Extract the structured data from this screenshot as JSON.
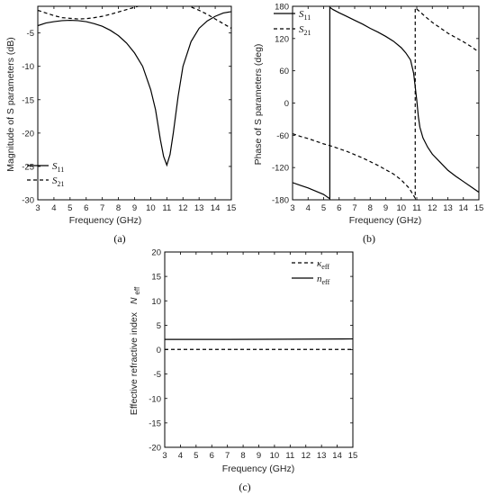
{
  "chart_data": [
    {
      "panel": "(a)",
      "type": "line",
      "xlabel": "Frequency (GHz)",
      "ylabel": "Magnitude of S parameters (dB)",
      "xlim": [
        3,
        15
      ],
      "ylim": [
        -30,
        -1
      ],
      "xticks": [
        3,
        4,
        5,
        6,
        7,
        8,
        9,
        10,
        11,
        12,
        13,
        14,
        15
      ],
      "yticks": [
        -30,
        -25,
        -20,
        -15,
        -10,
        -5
      ],
      "legend": "bottom-left",
      "series": [
        {
          "name": "S11",
          "label_main": "S",
          "label_sub": "11",
          "style": "solid",
          "x": [
            3,
            3.5,
            4,
            4.5,
            5,
            5.5,
            6,
            6.5,
            7,
            7.5,
            8,
            8.5,
            9,
            9.5,
            10,
            10.3,
            10.6,
            10.8,
            11,
            11.2,
            11.4,
            11.7,
            12,
            12.5,
            13,
            13.5,
            14,
            14.5,
            15
          ],
          "y": [
            -3.9,
            -3.5,
            -3.3,
            -3.15,
            -3.1,
            -3.15,
            -3.3,
            -3.6,
            -4.0,
            -4.6,
            -5.4,
            -6.5,
            -8.0,
            -10.0,
            -13.5,
            -16.5,
            -21.0,
            -23.5,
            -24.8,
            -23.2,
            -20.0,
            -14.5,
            -10.0,
            -6.3,
            -4.3,
            -3.2,
            -2.5,
            -2.0,
            -1.8
          ]
        },
        {
          "name": "S21",
          "label_main": "S",
          "label_sub": "21",
          "style": "dashed",
          "x": [
            3,
            3.5,
            4,
            4.5,
            5,
            5.5,
            6,
            6.5,
            7,
            7.5,
            8,
            8.5,
            9,
            9.5,
            10,
            10.5,
            11,
            11.5,
            12,
            12.5,
            13,
            13.5,
            14,
            14.5,
            15
          ],
          "y": [
            -1.6,
            -2.0,
            -2.4,
            -2.7,
            -2.8,
            -2.9,
            -2.85,
            -2.7,
            -2.5,
            -2.2,
            -1.85,
            -1.5,
            -1.15,
            -0.8,
            -0.55,
            -0.35,
            -0.3,
            -0.4,
            -0.7,
            -1.1,
            -1.6,
            -2.2,
            -2.9,
            -3.6,
            -4.3
          ]
        }
      ]
    },
    {
      "panel": "(b)",
      "type": "line",
      "xlabel": "Frequency (GHz)",
      "ylabel": "Phase of S parameters (deg)",
      "xlim": [
        3,
        15
      ],
      "ylim": [
        -180,
        180
      ],
      "xticks": [
        3,
        4,
        5,
        6,
        7,
        8,
        9,
        10,
        11,
        12,
        13,
        14,
        15
      ],
      "yticks": [
        -180,
        -120,
        -60,
        0,
        60,
        120,
        180
      ],
      "legend": "top-left",
      "series": [
        {
          "name": "S11",
          "label_main": "S",
          "label_sub": "11",
          "style": "solid",
          "x": [
            3,
            3.5,
            4,
            4.5,
            5,
            5.4,
            5.4,
            5.6,
            6,
            6.5,
            7,
            7.5,
            8,
            8.5,
            9,
            9.5,
            10,
            10.3,
            10.6,
            10.8,
            10.9,
            11.0,
            11.1,
            11.2,
            11.4,
            11.7,
            12,
            12.5,
            13,
            13.5,
            14,
            14.5,
            15
          ],
          "y": [
            -148,
            -153,
            -158,
            -164,
            -170,
            -178,
            178,
            174,
            168,
            161,
            154,
            147,
            139,
            132,
            124,
            115,
            103,
            93,
            80,
            55,
            30,
            5,
            -25,
            -45,
            -65,
            -82,
            -95,
            -110,
            -125,
            -136,
            -146,
            -156,
            -166
          ]
        },
        {
          "name": "S21",
          "label_main": "S",
          "label_sub": "21",
          "style": "dashed",
          "x": [
            3,
            3.5,
            4,
            4.5,
            5,
            5.5,
            6,
            6.5,
            7,
            7.5,
            8,
            8.5,
            9,
            9.5,
            10,
            10.5,
            10.9,
            10.9,
            11.2,
            11.5,
            12,
            12.5,
            13,
            13.5,
            14,
            14.5,
            15
          ],
          "y": [
            -57,
            -62,
            -66,
            -71,
            -76,
            -80,
            -85,
            -90,
            -96,
            -102,
            -109,
            -116,
            -124,
            -132,
            -143,
            -158,
            -177,
            177,
            170,
            162,
            150,
            140,
            130,
            122,
            114,
            105,
            95
          ]
        }
      ]
    },
    {
      "panel": "(c)",
      "type": "line",
      "xlabel": "Frequency (GHz)",
      "ylabel": "Effective refractive index",
      "ylabel_symbol": "N",
      "ylabel_symbol_sub": "eff",
      "xlim": [
        3,
        15
      ],
      "ylim": [
        -20,
        20
      ],
      "xticks": [
        3,
        4,
        5,
        6,
        7,
        8,
        9,
        10,
        11,
        12,
        13,
        14,
        15
      ],
      "yticks": [
        -20,
        -15,
        -10,
        -5,
        0,
        5,
        10,
        15,
        20
      ],
      "legend": "top-right",
      "series": [
        {
          "name": "κeff",
          "label_main": "κ",
          "label_sub": "eff",
          "style": "dashed",
          "x": [
            3,
            15
          ],
          "y": [
            0.05,
            0.05
          ]
        },
        {
          "name": "neff",
          "label_main": "n",
          "label_sub": "eff",
          "style": "solid",
          "x": [
            3,
            7,
            11,
            15
          ],
          "y": [
            2.1,
            2.1,
            2.15,
            2.2
          ]
        }
      ]
    }
  ]
}
